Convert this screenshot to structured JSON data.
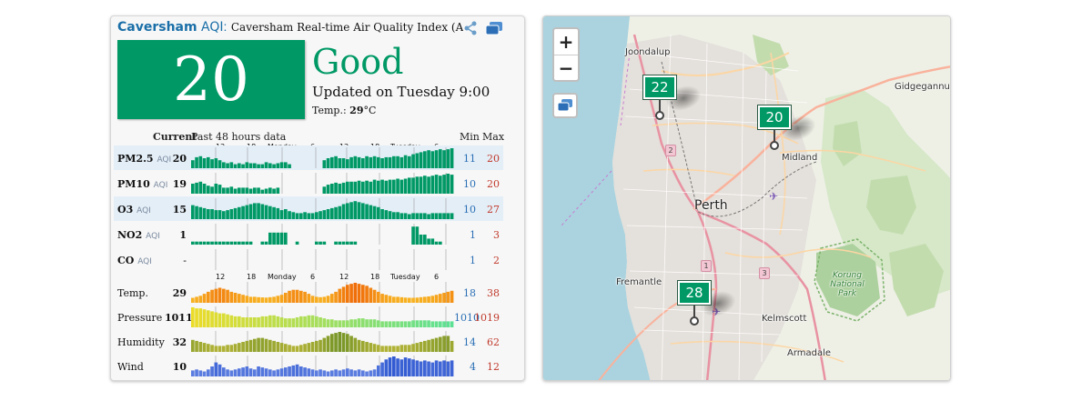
{
  "widget": {
    "city": "Caversham",
    "aqi_word": "AQI",
    "colon": ":",
    "title": "Caversham Real-time Air Quality Index (AQ",
    "aqi_value": "20",
    "status": "Good",
    "updated": "Updated on Tuesday 9:00",
    "temp_label": "Temp.: ",
    "temp_value": "29",
    "temp_unit": "°C",
    "status_color": "#009966",
    "icons": {
      "share": "share-icon",
      "window": "window-icon"
    }
  },
  "table": {
    "header_current": "Current",
    "header_past": "Past 48 hours data",
    "header_min": "Min",
    "header_max": "Max",
    "ticks": [
      "12",
      "18",
      "Monday",
      "6",
      "12",
      "18",
      "Tuesday",
      "6"
    ],
    "rows": [
      {
        "key": "pm25",
        "label": "PM2.5",
        "sub": "AQI",
        "current": "20",
        "min": "11",
        "max": "20",
        "color": "#009966"
      },
      {
        "key": "pm10",
        "label": "PM10",
        "sub": "AQI",
        "current": "19",
        "min": "10",
        "max": "20",
        "color": "#009966"
      },
      {
        "key": "o3",
        "label": "O3",
        "sub": "AQI",
        "current": "15",
        "min": "10",
        "max": "27",
        "color": "#009966"
      },
      {
        "key": "no2",
        "label": "NO2",
        "sub": "AQI",
        "current": "1",
        "min": "1",
        "max": "3",
        "color": "#009966"
      },
      {
        "key": "co",
        "label": "CO",
        "sub": "AQI",
        "current": "-",
        "min": "1",
        "max": "2",
        "color": "#009966"
      },
      {
        "key": "temp",
        "label": "Temp.",
        "sub": "",
        "current": "29",
        "min": "18",
        "max": "38",
        "color": "#f5a623"
      },
      {
        "key": "pressure",
        "label": "Pressure",
        "sub": "",
        "current": "1011",
        "min": "1010",
        "max": "1019",
        "color": "#c9e04a"
      },
      {
        "key": "humidity",
        "label": "Humidity",
        "sub": "",
        "current": "32",
        "min": "14",
        "max": "62",
        "color": "#a3b23a"
      },
      {
        "key": "wind",
        "label": "Wind",
        "sub": "",
        "current": "10",
        "min": "4",
        "max": "12",
        "color": "#4169e1"
      }
    ],
    "series": {
      "pm25": [
        0.4,
        0.55,
        0.6,
        0.5,
        0.55,
        0.45,
        0.5,
        0.4,
        0.3,
        0.25,
        0.3,
        0.2,
        0.25,
        0.2,
        0.3,
        0.25,
        0.25,
        0.2,
        0.2,
        0.3,
        0.25,
        0.2,
        0.25,
        0.3,
        0.3,
        0.2,
        0,
        0,
        0,
        0,
        0,
        0,
        0,
        0,
        0.4,
        0.5,
        0.55,
        0.6,
        0.5,
        0.5,
        0.45,
        0.55,
        0.6,
        0.55,
        0.5,
        0.6,
        0.55,
        0.6,
        0.55,
        0.5,
        0.55,
        0.55,
        0.6,
        0.6,
        0.55,
        0.65,
        0.6,
        0.7,
        0.75,
        0.8,
        0.85,
        0.9,
        0.85,
        0.9,
        0.95,
        0.9,
        0.95,
        1.0
      ],
      "pm10": [
        0.5,
        0.55,
        0.6,
        0.5,
        0.4,
        0.35,
        0.5,
        0.45,
        0.3,
        0.3,
        0.35,
        0.25,
        0.3,
        0.3,
        0.3,
        0.25,
        0.3,
        0.3,
        0.2,
        0.25,
        0.3,
        0.25,
        0.3,
        0,
        0,
        0,
        0,
        0,
        0,
        0,
        0,
        0,
        0,
        0,
        0.35,
        0.45,
        0.5,
        0.55,
        0.5,
        0.55,
        0.6,
        0.6,
        0.6,
        0.65,
        0.6,
        0.65,
        0.6,
        0.7,
        0.65,
        0.7,
        0.65,
        0.7,
        0.7,
        0.75,
        0.7,
        0.75,
        0.8,
        0.8,
        0.85,
        0.85,
        0.9,
        0.85,
        0.9,
        0.95,
        0.9,
        0.95,
        1.0,
        0.95
      ],
      "o3": [
        0.7,
        0.65,
        0.6,
        0.55,
        0.5,
        0.5,
        0.45,
        0.45,
        0.4,
        0.45,
        0.5,
        0.55,
        0.6,
        0.65,
        0.7,
        0.75,
        0.8,
        0.8,
        0.75,
        0.7,
        0.65,
        0.6,
        0.55,
        0.45,
        0.5,
        0.4,
        0.35,
        0.3,
        0.3,
        0.35,
        0.3,
        0.3,
        0.35,
        0.4,
        0.45,
        0.5,
        0.55,
        0.6,
        0.65,
        0.75,
        0.8,
        0.85,
        0.9,
        0.85,
        0.8,
        0.75,
        0.7,
        0.65,
        0.6,
        0.5,
        0.45,
        0.4,
        0.35,
        0.35,
        0.3,
        0.3,
        0.25,
        0.3,
        0.3,
        0.3,
        0.3,
        0.25,
        0.3,
        0.3,
        0.3,
        0.3,
        0.3,
        0.3
      ],
      "no2": [
        0.15,
        0.15,
        0.15,
        0.15,
        0.15,
        0.15,
        0.15,
        0.15,
        0.15,
        0.15,
        0.15,
        0.15,
        0.15,
        0.15,
        0.15,
        0.15,
        0,
        0,
        0.15,
        0.15,
        0.6,
        0.6,
        0.6,
        0.6,
        0.6,
        0,
        0,
        0.15,
        0,
        0,
        0,
        0,
        0.15,
        0.15,
        0.15,
        0,
        0,
        0.15,
        0.15,
        0.15,
        0.15,
        0.15,
        0.15,
        0,
        0,
        0,
        0,
        0,
        0,
        0,
        0,
        0,
        0,
        0,
        0,
        0,
        0,
        0.9,
        0.9,
        0.5,
        0.5,
        0.3,
        0.3,
        0.15,
        0.15,
        0,
        0,
        0
      ],
      "co": [],
      "temp": [
        0.25,
        0.3,
        0.35,
        0.45,
        0.55,
        0.65,
        0.7,
        0.75,
        0.7,
        0.65,
        0.55,
        0.5,
        0.45,
        0.4,
        0.35,
        0.3,
        0.3,
        0.28,
        0.27,
        0.26,
        0.28,
        0.3,
        0.35,
        0.4,
        0.5,
        0.6,
        0.65,
        0.65,
        0.6,
        0.55,
        0.45,
        0.35,
        0.3,
        0.28,
        0.3,
        0.35,
        0.45,
        0.55,
        0.7,
        0.8,
        0.9,
        0.95,
        1.0,
        0.95,
        0.9,
        0.85,
        0.75,
        0.65,
        0.55,
        0.45,
        0.4,
        0.35,
        0.3,
        0.3,
        0.28,
        0.26,
        0.25,
        0.25,
        0.26,
        0.28,
        0.3,
        0.32,
        0.35,
        0.4,
        0.45,
        0.5,
        0.55,
        0.6
      ],
      "pressure": [
        1.0,
        0.95,
        0.95,
        0.9,
        0.85,
        0.8,
        0.75,
        0.7,
        0.7,
        0.65,
        0.6,
        0.55,
        0.55,
        0.5,
        0.5,
        0.5,
        0.5,
        0.5,
        0.55,
        0.55,
        0.6,
        0.6,
        0.55,
        0.5,
        0.45,
        0.45,
        0.45,
        0.5,
        0.55,
        0.55,
        0.6,
        0.6,
        0.55,
        0.5,
        0.45,
        0.4,
        0.4,
        0.35,
        0.35,
        0.35,
        0.35,
        0.4,
        0.4,
        0.45,
        0.45,
        0.4,
        0.4,
        0.4,
        0.35,
        0.3,
        0.3,
        0.3,
        0.3,
        0.3,
        0.3,
        0.3,
        0.3,
        0.35,
        0.35,
        0.35,
        0.35,
        0.35,
        0.3,
        0.3,
        0.3,
        0.3,
        0.3,
        0.3
      ],
      "humidity": [
        0.6,
        0.55,
        0.5,
        0.45,
        0.4,
        0.35,
        0.3,
        0.3,
        0.3,
        0.35,
        0.35,
        0.4,
        0.45,
        0.5,
        0.55,
        0.6,
        0.65,
        0.7,
        0.7,
        0.65,
        0.6,
        0.55,
        0.5,
        0.45,
        0.4,
        0.35,
        0.3,
        0.3,
        0.35,
        0.4,
        0.45,
        0.5,
        0.55,
        0.6,
        0.7,
        0.8,
        0.9,
        0.95,
        1.0,
        0.95,
        0.9,
        0.8,
        0.7,
        0.6,
        0.55,
        0.5,
        0.45,
        0.4,
        0.35,
        0.3,
        0.3,
        0.3,
        0.3,
        0.3,
        0.35,
        0.35,
        0.35,
        0.4,
        0.45,
        0.5,
        0.55,
        0.6,
        0.65,
        0.7,
        0.75,
        0.8,
        0.8,
        0.55
      ],
      "wind": [
        0.3,
        0.35,
        0.3,
        0.25,
        0.35,
        0.5,
        0.7,
        0.6,
        0.45,
        0.35,
        0.3,
        0.35,
        0.4,
        0.45,
        0.5,
        0.4,
        0.35,
        0.5,
        0.45,
        0.4,
        0.35,
        0.3,
        0.35,
        0.4,
        0.45,
        0.5,
        0.55,
        0.6,
        0.5,
        0.45,
        0.4,
        0.35,
        0.3,
        0.35,
        0.3,
        0.25,
        0.3,
        0.35,
        0.3,
        0.35,
        0.4,
        0.35,
        0.3,
        0.35,
        0.3,
        0.25,
        0.3,
        0.35,
        0.55,
        0.7,
        0.85,
        0.95,
        1.0,
        0.9,
        0.85,
        0.95,
        0.9,
        0.85,
        0.8,
        0.75,
        0.8,
        0.75,
        0.7,
        0.8,
        0.75,
        0.8,
        0.75,
        0.8
      ]
    }
  },
  "map": {
    "zoom_in": "+",
    "zoom_out": "−",
    "labels": {
      "joondalup": "Joondalup",
      "gidgegannup": "Gidgegannup",
      "midland": "Midland",
      "perth": "Perth",
      "fremantle": "Fremantle",
      "kelmscott": "Kelmscott",
      "armadale": "Armadale",
      "korung": "Korung National Park"
    },
    "routes": [
      "2",
      "1",
      "3"
    ],
    "markers": [
      {
        "name": "north",
        "value": "22"
      },
      {
        "name": "caversham",
        "value": "20"
      },
      {
        "name": "south",
        "value": "28"
      }
    ],
    "marker_color": "#009966",
    "icons": {
      "layers": "layers-icon",
      "airport": "airport-icon"
    }
  }
}
